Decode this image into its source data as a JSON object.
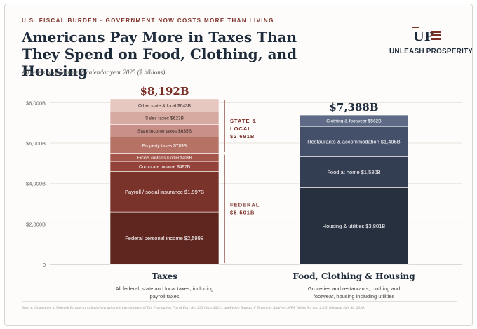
{
  "header": {
    "kicker": "U.S. FISCAL BURDEN · GOVERNMENT NOW COSTS MORE THAN LIVING",
    "title_line1": "Americans Pay More in Taxes Than",
    "title_line2": "They Spend on Food, Clothing, and Housing",
    "subtitle": "All levels of government, calendar year 2025 ($ billions)"
  },
  "logo": {
    "text": "UNLEASH PROSPERITY",
    "mark_letters": "UP",
    "icon": "flag-stripes-icon",
    "color": "#7a2e26"
  },
  "chart_data": {
    "type": "bar",
    "stacked": true,
    "ylim": [
      0,
      8500
    ],
    "yticks": [
      0,
      2000,
      4000,
      6000,
      8000
    ],
    "ytick_labels": [
      "0",
      "$2,000B",
      "$4,000B",
      "$6,000B",
      "$8,000B"
    ],
    "grid": true,
    "bars": [
      {
        "category": "Taxes",
        "description": "All federal, state and local taxes, including payroll taxes",
        "total": 8192,
        "total_label": "$8,192B",
        "total_color": "#7a2e26",
        "segments": [
          {
            "label": "Federal personal income $2,599B",
            "value": 2599,
            "color": "#5f2620"
          },
          {
            "label": "Payroll / social insurance $1,997B",
            "value": 1997,
            "color": "#7a332b"
          },
          {
            "label": "Corporate income $497B",
            "value": 497,
            "color": "#94433a"
          },
          {
            "label": "Excise, customs & other $409B",
            "value": 409,
            "color": "#a5564b"
          },
          {
            "label": "Property taxes $789B",
            "value": 789,
            "color": "#b77266"
          },
          {
            "label": "State income taxes $635B",
            "value": 635,
            "color": "#c89086"
          },
          {
            "label": "Sales taxes $623B",
            "value": 623,
            "color": "#d7aaa1"
          },
          {
            "label": "Other state & local $643B",
            "value": 643,
            "color": "#e6c8c1"
          }
        ],
        "brackets": [
          {
            "line1": "STATE &",
            "line2": "LOCAL",
            "line3": "$2,691B",
            "from": 5501,
            "to": 8192
          },
          {
            "line1": "FEDERAL",
            "line2": "$5,501B",
            "from": 0,
            "to": 5501
          }
        ]
      },
      {
        "category": "Food, Clothing & Housing",
        "description": "Groceries and restaurants, clothing and footwear, housing including utilities",
        "total": 7388,
        "total_label": "$7,388B",
        "total_color": "#1e2b3b",
        "segments": [
          {
            "label": "Housing & utilities $3,801B",
            "value": 3801,
            "color": "#27303f"
          },
          {
            "label": "Food at home $1,530B",
            "value": 1530,
            "color": "#333e52"
          },
          {
            "label": "Restaurants & accommodation $1,495B",
            "value": 1495,
            "color": "#44506a"
          },
          {
            "label": "Clothing & footwear $562B",
            "value": 562,
            "color": "#5f6b86"
          }
        ]
      }
    ]
  },
  "source": "Source: Committee to Unleash Prosperity calculations using the methodology of Tax Foundation Fiscal Fact No. 299 (May 2012), applied to Bureau of Economic Analysis NIPA Tables 3.1 and 2.3.5, released July 30, 2026."
}
